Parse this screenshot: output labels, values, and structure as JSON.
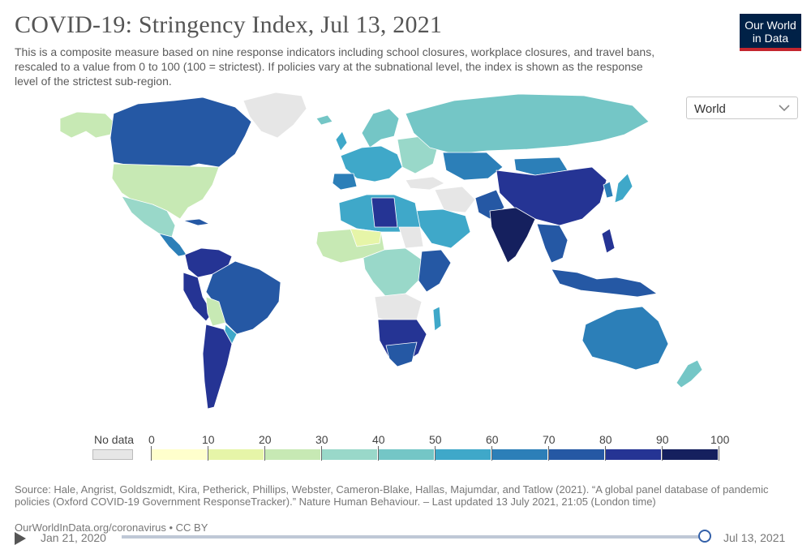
{
  "header": {
    "title": "COVID-19: Stringency Index, Jul 13, 2021",
    "subtitle": "This is a composite measure based on nine response indicators including school closures, workplace closures, and travel bans, rescaled to a value from 0 to 100 (100 = strictest). If policies vary at the subnational level, the index is shown as the response level of the strictest sub-region."
  },
  "logo": {
    "line1": "Our World",
    "line2": "in Data"
  },
  "region_select": {
    "value": "World",
    "icon": "chevron-down-icon"
  },
  "legend": {
    "no_data_label": "No data",
    "ticks": [
      "0",
      "10",
      "20",
      "30",
      "40",
      "50",
      "60",
      "70",
      "80",
      "90",
      "100"
    ],
    "colors": [
      "#ffffcc",
      "#e6f5a8",
      "#c7e9b4",
      "#99d8c9",
      "#74c6c6",
      "#3fa8c9",
      "#2c7fb8",
      "#2558a4",
      "#253494",
      "#15205e"
    ],
    "no_data_color": "#e6e6e6"
  },
  "source": "Source: Hale, Angrist, Goldszmidt, Kira, Petherick, Phillips, Webster, Cameron-Blake, Hallas, Majumdar, and Tatlow (2021). “A global panel database of pandemic policies (Oxford COVID-19 Government ResponseTracker).” Nature Human Behaviour. – Last updated 13 July 2021, 21:05 (London time)",
  "footer": {
    "link": "OurWorldInData.org/coronavirus • CC BY"
  },
  "timeline": {
    "start": "Jan 21, 2020",
    "end": "Jul 13, 2021"
  }
}
